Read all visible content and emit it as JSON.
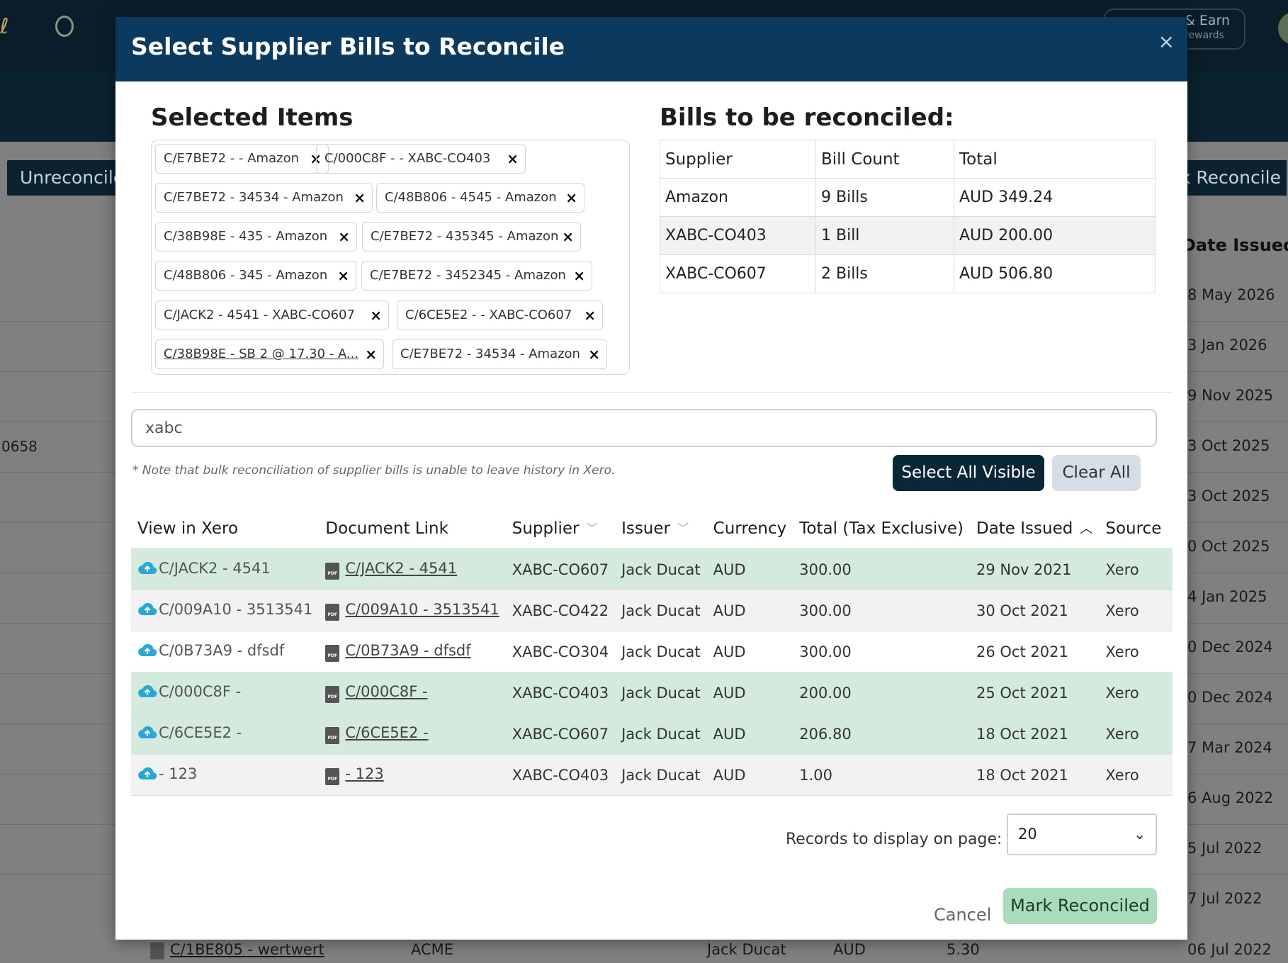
{
  "background": {
    "tab_unreconciled": "Unreconcile",
    "tab_bulk_reconcile": "k Reconcile",
    "refer_title": "& Earn",
    "refer_sub": "rewards",
    "date_header": "Date Issued",
    "left_value": "0658",
    "dates": [
      "8 May 2026",
      "3 Jan 2026",
      "9 Nov 2025",
      "3 Oct 2025",
      "3 Oct 2025",
      "0 Oct 2025",
      "4 Jan 2025",
      "0 Dec 2024",
      "0 Dec 2024",
      "7 Mar 2024",
      "6 Aug 2022",
      "5 Jul 2022",
      "7 Jul 2022",
      "06 Jul 2022"
    ],
    "bottom_row": {
      "doc": "C/1BE805 - wertwert",
      "supplier": "ACME",
      "issuer": "Jack Ducat",
      "currency": "AUD",
      "total": "5.30"
    }
  },
  "modal": {
    "title": "Select Supplier Bills to Reconcile",
    "close": "×",
    "selected_heading": "Selected Items",
    "chips": [
      {
        "label": "C/E7BE72 - - Amazon",
        "link": false
      },
      {
        "label": "C/000C8F - - XABC-CO403",
        "link": false
      },
      {
        "label": "C/E7BE72 - 34534 - Amazon",
        "link": false
      },
      {
        "label": "C/48B806 - 4545 - Amazon",
        "link": false
      },
      {
        "label": "C/38B98E - 435 - Amazon",
        "link": false
      },
      {
        "label": "C/E7BE72 - 435345 - Amazon",
        "link": false
      },
      {
        "label": "C/48B806 - 345 - Amazon",
        "link": false
      },
      {
        "label": "C/E7BE72 - 3452345 - Amazon",
        "link": false
      },
      {
        "label": "C/JACK2 - 4541 - XABC-CO607",
        "link": false
      },
      {
        "label": "C/6CE5E2 - - XABC-CO607",
        "link": false
      },
      {
        "label": "C/38B98E - SB 2 @ 17.30 - A...",
        "link": true
      },
      {
        "label": "C/E7BE72 - 34534 - Amazon",
        "link": false
      }
    ],
    "summary_heading": "Bills to be reconciled:",
    "summary": {
      "headers": [
        "Supplier",
        "Bill Count",
        "Total"
      ],
      "rows": [
        [
          "Amazon",
          "9 Bills",
          "AUD 349.24"
        ],
        [
          "XABC-CO403",
          "1 Bill",
          "AUD 200.00"
        ],
        [
          "XABC-CO607",
          "2 Bills",
          "AUD 506.80"
        ]
      ]
    },
    "search_value": "xabc",
    "note": "* Note that bulk reconciliation of supplier bills is unable to leave history in Xero.",
    "select_all_label": "Select All Visible",
    "clear_all_label": "Clear All",
    "bills": {
      "headers": [
        "View in Xero",
        "Document Link",
        "Supplier",
        "Issuer",
        "Currency",
        "Total (Tax Exclusive)",
        "Date Issued",
        "Source"
      ],
      "rows": [
        {
          "xero": "C/JACK2 - 4541",
          "doc": "C/JACK2 - 4541",
          "supplier": "XABC-CO607",
          "issuer": "Jack Ducat",
          "currency": "AUD",
          "total": "300.00",
          "date": "29 Nov 2021",
          "source": "Xero",
          "selected": true
        },
        {
          "xero": "C/009A10 - 3513541",
          "doc": "C/009A10 - 3513541",
          "supplier": "XABC-CO422",
          "issuer": "Jack Ducat",
          "currency": "AUD",
          "total": "300.00",
          "date": "30 Oct 2021",
          "source": "Xero",
          "selected": false
        },
        {
          "xero": "C/0B73A9 - dfsdf",
          "doc": "C/0B73A9 - dfsdf",
          "supplier": "XABC-CO304",
          "issuer": "Jack Ducat",
          "currency": "AUD",
          "total": "300.00",
          "date": "26 Oct 2021",
          "source": "Xero",
          "selected": false
        },
        {
          "xero": "C/000C8F -",
          "doc": "C/000C8F -",
          "supplier": "XABC-CO403",
          "issuer": "Jack Ducat",
          "currency": "AUD",
          "total": "200.00",
          "date": "25 Oct 2021",
          "source": "Xero",
          "selected": true
        },
        {
          "xero": "C/6CE5E2 -",
          "doc": "C/6CE5E2 -",
          "supplier": "XABC-CO607",
          "issuer": "Jack Ducat",
          "currency": "AUD",
          "total": "206.80",
          "date": "18 Oct 2021",
          "source": "Xero",
          "selected": true
        },
        {
          "xero": "- 123",
          "doc": "- 123",
          "supplier": "XABC-CO403",
          "issuer": "Jack Ducat",
          "currency": "AUD",
          "total": "1.00",
          "date": "18 Oct 2021",
          "source": "Xero",
          "selected": false
        }
      ]
    },
    "records_label": "Records to display on page:",
    "records_value": "20",
    "cancel_label": "Cancel",
    "mark_label": "Mark Reconciled",
    "colors": {
      "header": "#0c3a5e",
      "selected_row": "#d4eadd",
      "mark_button": "#a8dcbb",
      "cloud": "#29a8d8"
    }
  }
}
